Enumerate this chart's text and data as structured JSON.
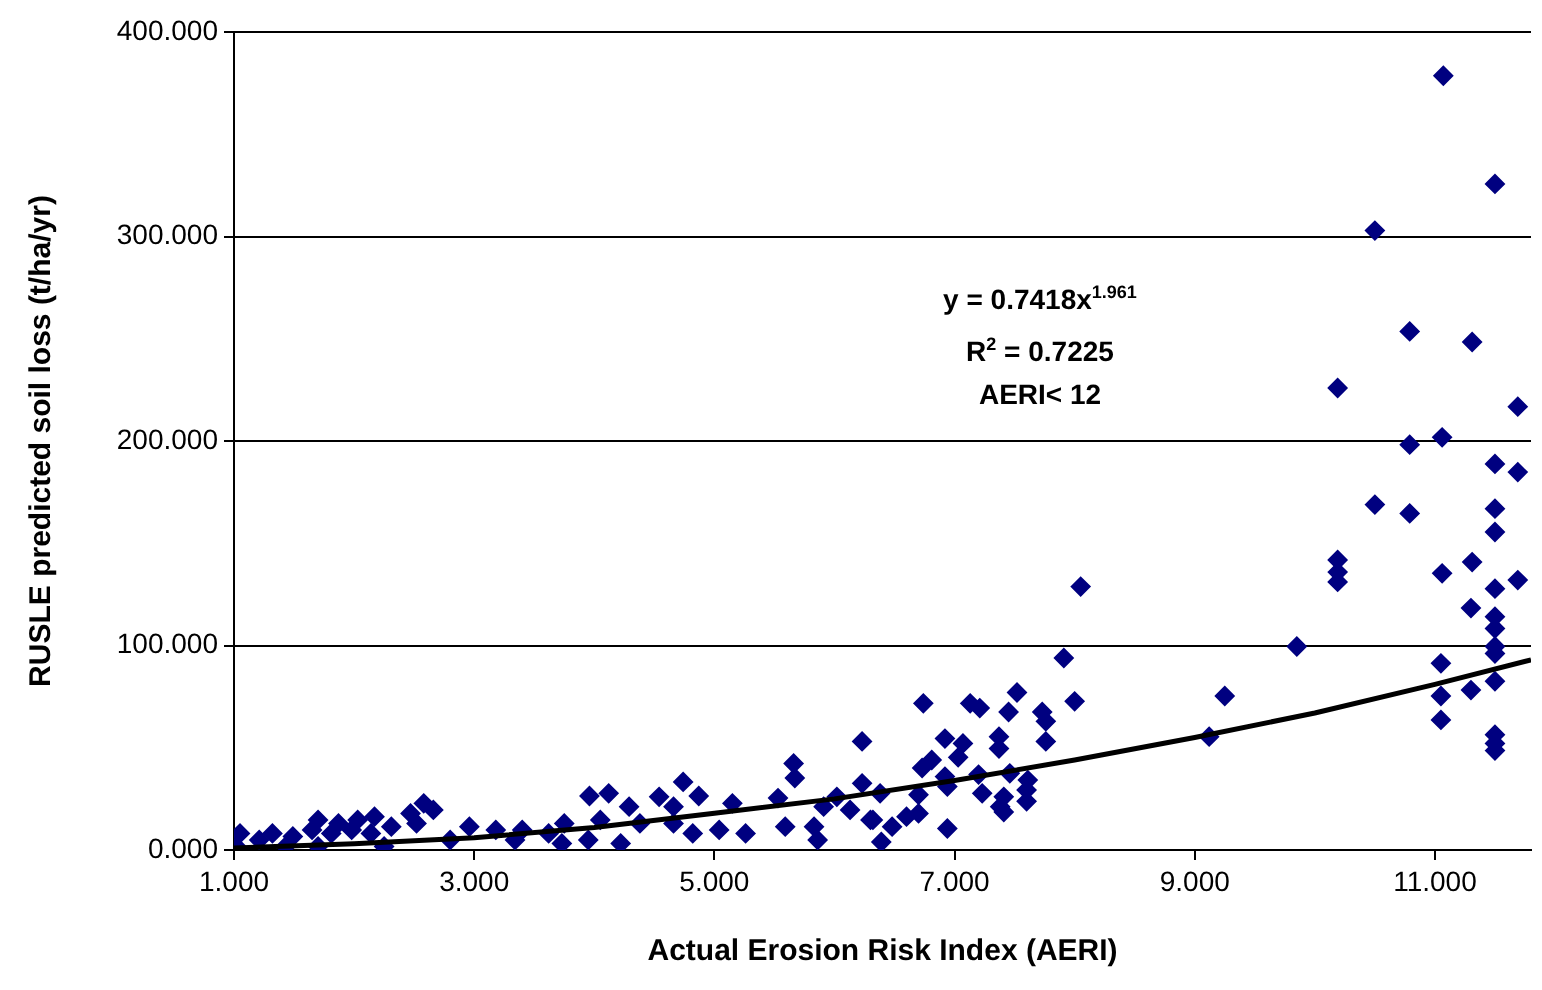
{
  "chart_data": {
    "type": "scatter",
    "xlabel": "Actual Erosion Risk Index (AERI)",
    "ylabel": "RUSLE predicted soil loss (t/ha/yr)",
    "xlim": [
      1,
      11.8
    ],
    "ylim": [
      0,
      400
    ],
    "xticks": [
      {
        "value": 1,
        "label": "1.000"
      },
      {
        "value": 3,
        "label": "3.000"
      },
      {
        "value": 5,
        "label": "5.000"
      },
      {
        "value": 7,
        "label": "7.000"
      },
      {
        "value": 9,
        "label": "9.000"
      },
      {
        "value": 11,
        "label": "11.000"
      }
    ],
    "yticks": [
      {
        "value": 0,
        "label": "0.000"
      },
      {
        "value": 100,
        "label": "100.000"
      },
      {
        "value": 200,
        "label": "200.000"
      },
      {
        "value": 300,
        "label": "300.000"
      },
      {
        "value": 400,
        "label": "400.000"
      }
    ],
    "grid": "y",
    "legend": false,
    "marker": "diamond",
    "annotations": [
      "y = 0.7418x$^{1.961}$",
      "R$^{2}$ = 0.7225",
      "AERI< 12"
    ],
    "series": [
      {
        "color": "#000080",
        "x": [
          11.07,
          11.5,
          10.5,
          10.79,
          11.31,
          10.19,
          11.69,
          10.79,
          11.06,
          11.5,
          11.69,
          10.5,
          10.79,
          11.5,
          11.5,
          10.19,
          10.19,
          10.19,
          11.06,
          11.31,
          11.5,
          11.69,
          8.05,
          11.3,
          11.5,
          11.5,
          11.5,
          11.5,
          9.85,
          11.05,
          11.5,
          11.05,
          11.3,
          11.05,
          11.5,
          11.5,
          11.5,
          9.25,
          9.12,
          7.91,
          8.0,
          6.74,
          7.13,
          7.21,
          7.52,
          7.45,
          7.73,
          7.76,
          6.92,
          7.07,
          7.03,
          7.37,
          7.37,
          7.76,
          6.73,
          6.81,
          6.92,
          7.2,
          7.46,
          7.61,
          6.94,
          7.23,
          7.41,
          7.38,
          7.41,
          7.6,
          7.6,
          6.7,
          6.7,
          6.6,
          6.48,
          6.39,
          6.94,
          6.32,
          6.38,
          6.23,
          5.66,
          5.67,
          3.96,
          4.12,
          4.54,
          4.74,
          4.87,
          4.29,
          4.66,
          5.15,
          5.53,
          6.02,
          6.23,
          5.91,
          6.13,
          6.3,
          5.83,
          5.86,
          4.82,
          5.04,
          5.26,
          5.59,
          3.75,
          4.05,
          4.38,
          4.66,
          2.96,
          3.18,
          3.4,
          3.62,
          3.95,
          4.22,
          2.58,
          2.66,
          2.47,
          2.52,
          2.17,
          2.03,
          1.87,
          1.7,
          2.31,
          2.14,
          1.98,
          1.81,
          1.65,
          1.05,
          1.32,
          1.49,
          1.21,
          1.02,
          1.43,
          1.7,
          2.25,
          2.8,
          3.34,
          3.73
        ],
        "values": [
          378.6,
          325.7,
          302.9,
          253.6,
          248.4,
          225.9,
          216.8,
          198.2,
          201.8,
          188.8,
          184.8,
          168.9,
          164.6,
          166.9,
          155.5,
          141.8,
          135.9,
          131.1,
          135.3,
          140.8,
          127.8,
          132,
          128.8,
          118.3,
          114.1,
          108.3,
          99.5,
          96.1,
          99.5,
          91.3,
          82.5,
          75.3,
          78.2,
          63.6,
          56.4,
          52.1,
          48.6,
          75.3,
          55.4,
          93.9,
          72.7,
          71.7,
          71.7,
          69.4,
          77,
          67.5,
          67.5,
          62.9,
          54.5,
          52.1,
          45.3,
          55.4,
          49.6,
          53.1,
          40.1,
          44,
          35.9,
          36.9,
          37.5,
          34.2,
          31,
          27.7,
          26,
          21.2,
          18.6,
          29.3,
          23.8,
          27,
          17.9,
          16.3,
          11.4,
          3.9,
          10.5,
          14.7,
          27.7,
          53.1,
          42.3,
          35.2,
          26.4,
          27.7,
          26,
          33.3,
          26.4,
          21.2,
          21.2,
          22.8,
          25.4,
          26,
          32.6,
          21.2,
          19.6,
          14.7,
          11.4,
          4.9,
          8.1,
          9.8,
          8.1,
          11.4,
          13,
          14.7,
          13,
          13,
          11.4,
          9.8,
          9.8,
          8.1,
          4.9,
          3.2,
          22.8,
          19.6,
          17.9,
          13,
          16.3,
          14.7,
          13,
          14.7,
          11.4,
          8.1,
          9.8,
          8.1,
          9.8,
          8.1,
          8.1,
          6.6,
          4.9,
          1.7,
          1.7,
          1.7,
          1.7,
          4.9,
          4.9,
          3.2
        ]
      },
      {
        "type": "line",
        "color": "#000000",
        "marker": "none",
        "x": [
          1,
          2,
          3,
          4,
          5,
          6,
          7,
          8,
          9,
          10,
          11,
          11.8
        ],
        "values": [
          1,
          3,
          6,
          11,
          18,
          25,
          34,
          44,
          55,
          67,
          81,
          93
        ]
      }
    ]
  }
}
